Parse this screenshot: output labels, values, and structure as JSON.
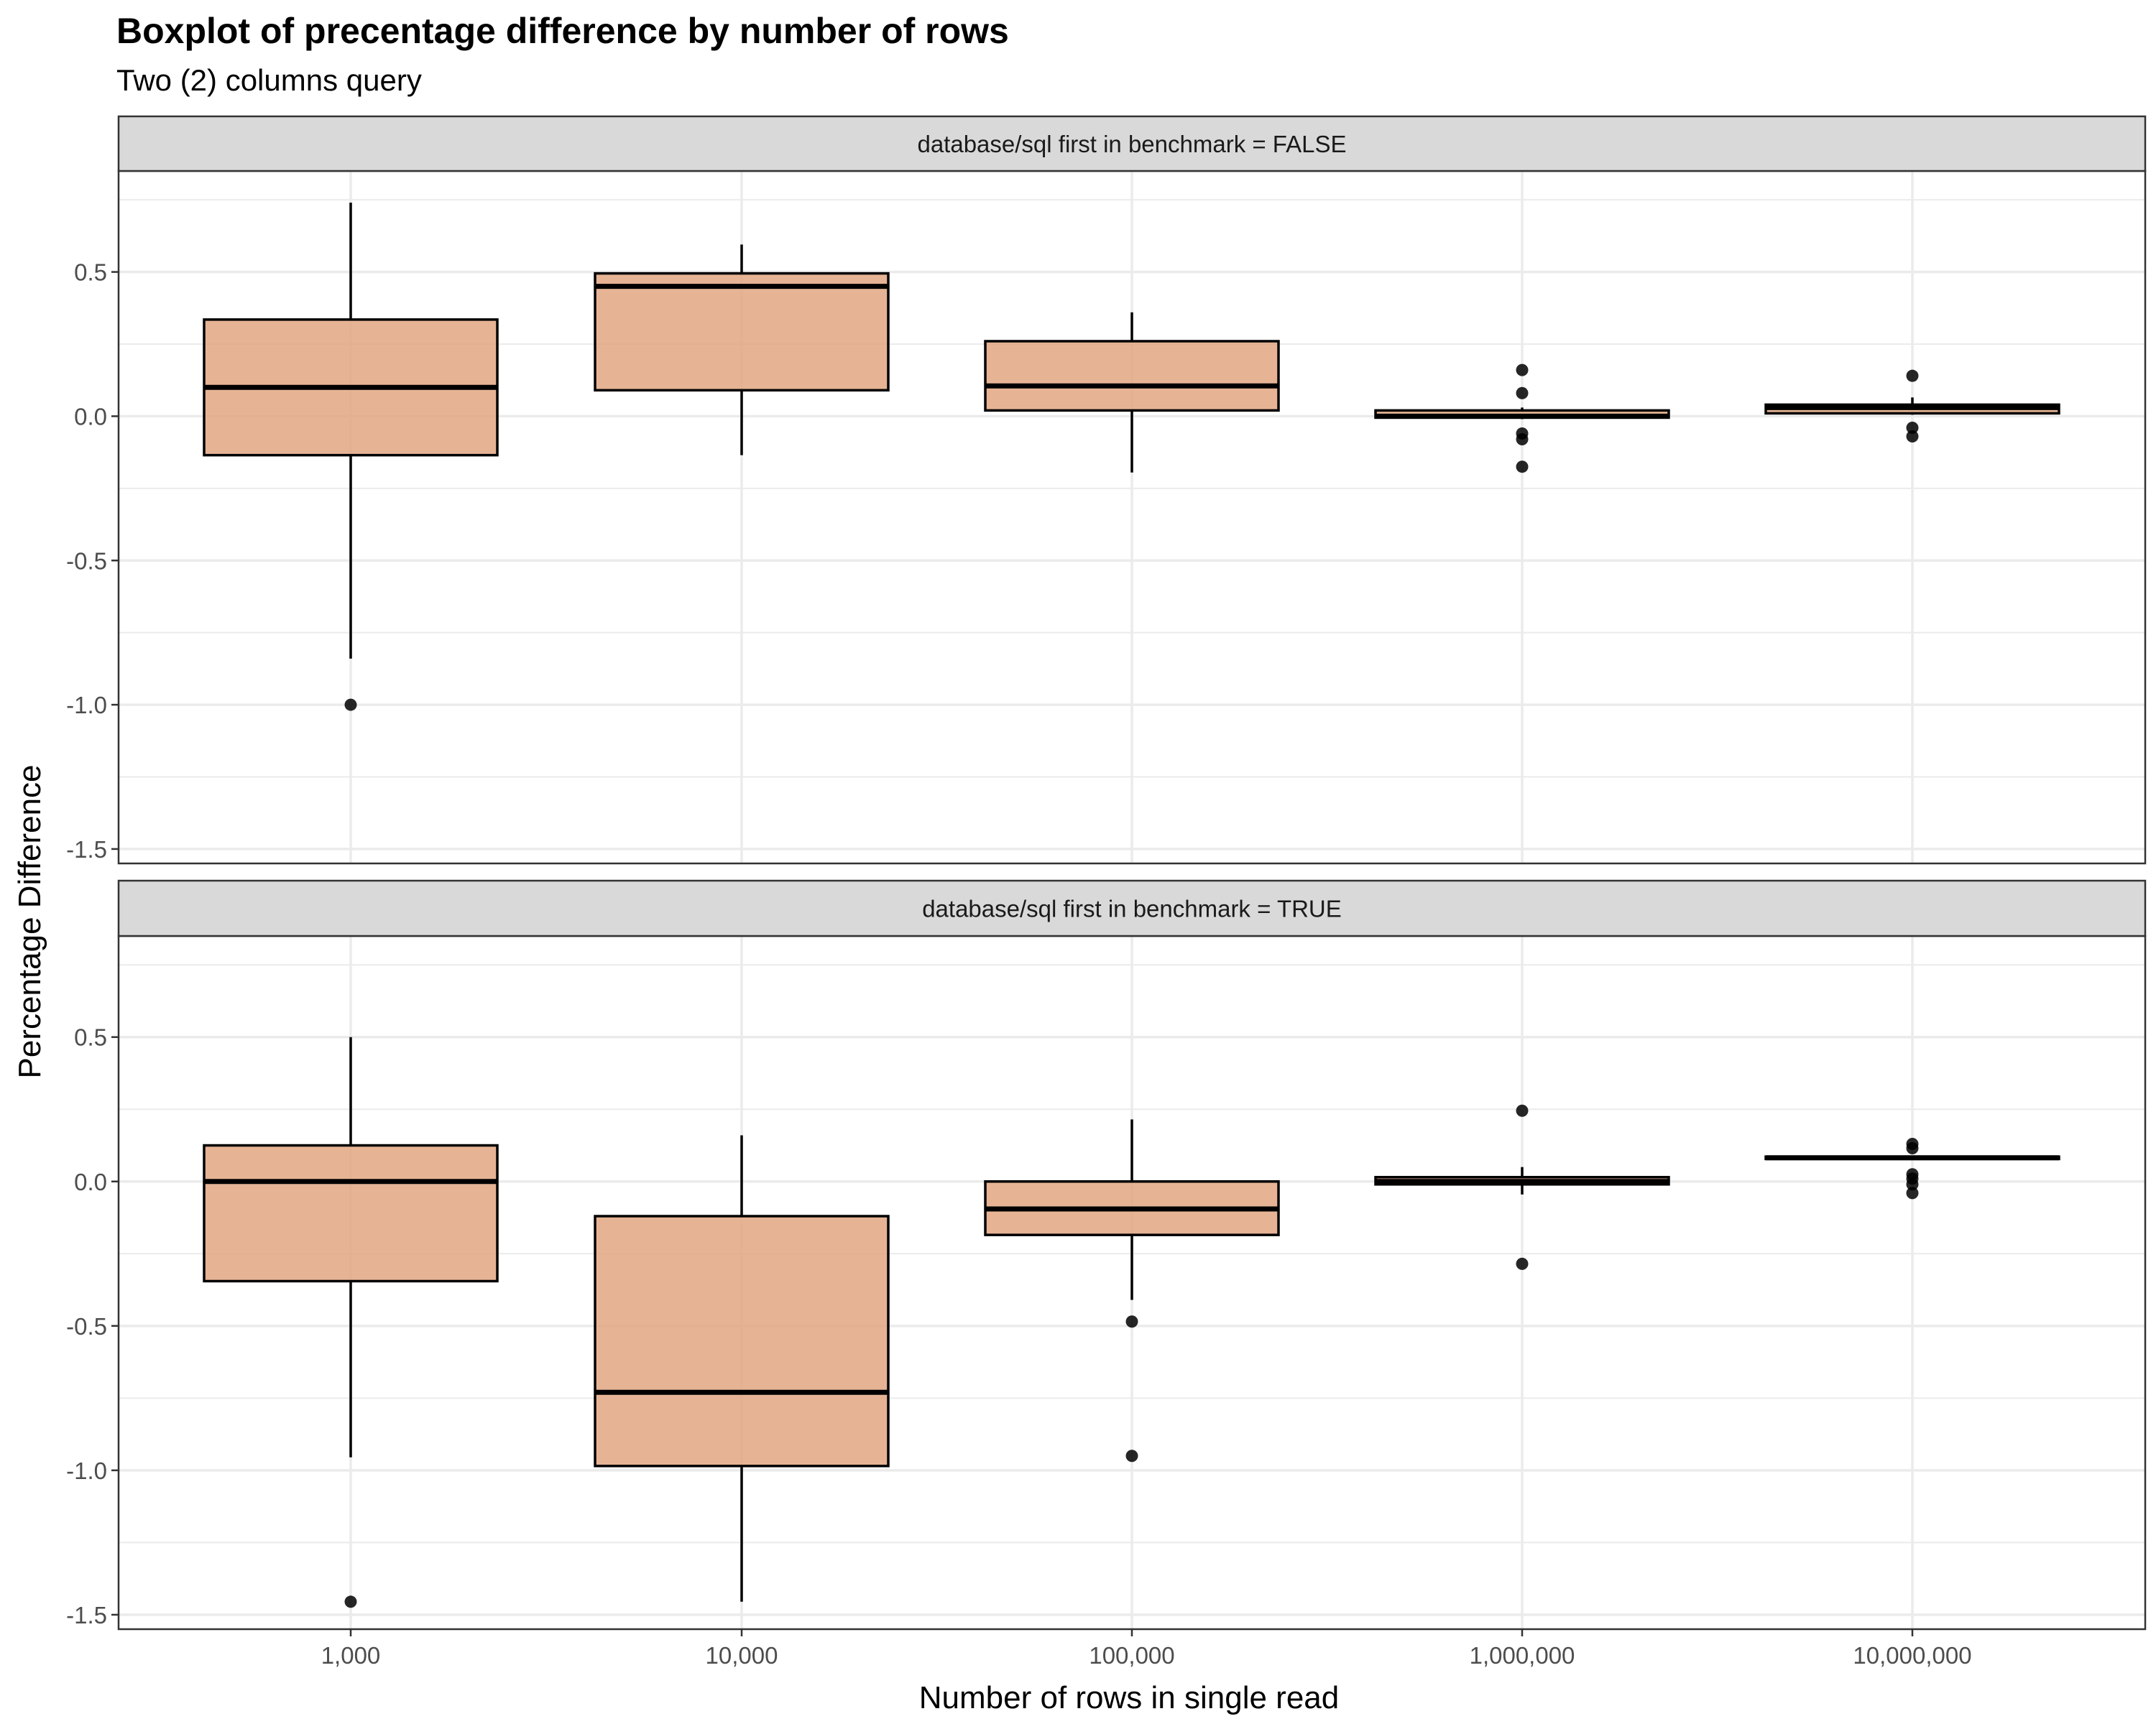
{
  "chart_data": {
    "type": "boxplot",
    "title": "Boxplot of precentage difference by number of rows",
    "subtitle": "Two (2) columns query",
    "xlabel": "Number of rows in single read",
    "ylabel": "Percentage Difference",
    "categories": [
      "1,000",
      "10,000",
      "100,000",
      "1,000,000",
      "10,000,000"
    ],
    "ylim": [
      -1.55,
      0.85
    ],
    "yticks": [
      0.5,
      0.0,
      -0.5,
      -1.0,
      -1.5
    ],
    "ytick_labels": [
      "0.5",
      "0.0",
      "-0.5",
      "-1.0",
      "-1.5"
    ],
    "grid": true,
    "legend": "none",
    "colors": {
      "box_fill": "#e0a47e",
      "box_stroke": "#000000",
      "strip_bg": "#d9d9d9",
      "grid": "#ebebeb"
    },
    "panels": [
      {
        "strip_label": "database/sql first in benchmark = FALSE",
        "boxes": [
          {
            "category": "1,000",
            "lower_whisker": -0.84,
            "q1": -0.135,
            "median": 0.1,
            "q3": 0.335,
            "upper_whisker": 0.74,
            "outliers": [
              -1.0
            ]
          },
          {
            "category": "10,000",
            "lower_whisker": -0.135,
            "q1": 0.09,
            "median": 0.45,
            "q3": 0.495,
            "upper_whisker": 0.595,
            "outliers": []
          },
          {
            "category": "100,000",
            "lower_whisker": -0.195,
            "q1": 0.02,
            "median": 0.105,
            "q3": 0.26,
            "upper_whisker": 0.36,
            "outliers": []
          },
          {
            "category": "1,000,000",
            "lower_whisker": -0.01,
            "q1": -0.005,
            "median": 0.0,
            "q3": 0.02,
            "upper_whisker": 0.03,
            "outliers": [
              0.16,
              0.08,
              -0.06,
              -0.08,
              -0.175
            ]
          },
          {
            "category": "10,000,000",
            "lower_whisker": 0.005,
            "q1": 0.01,
            "median": 0.03,
            "q3": 0.04,
            "upper_whisker": 0.065,
            "outliers": [
              0.14,
              -0.04,
              -0.07
            ]
          }
        ]
      },
      {
        "strip_label": "database/sql first in benchmark = TRUE",
        "boxes": [
          {
            "category": "1,000",
            "lower_whisker": -0.955,
            "q1": -0.345,
            "median": 0.0,
            "q3": 0.125,
            "upper_whisker": 0.5,
            "outliers": [
              -1.455
            ]
          },
          {
            "category": "10,000",
            "lower_whisker": -1.455,
            "q1": -0.985,
            "median": -0.73,
            "q3": -0.12,
            "upper_whisker": 0.16,
            "outliers": []
          },
          {
            "category": "100,000",
            "lower_whisker": -0.41,
            "q1": -0.185,
            "median": -0.095,
            "q3": 0.0,
            "upper_whisker": 0.215,
            "outliers": [
              -0.485,
              -0.95
            ]
          },
          {
            "category": "1,000,000",
            "lower_whisker": -0.045,
            "q1": -0.01,
            "median": 0.0,
            "q3": 0.015,
            "upper_whisker": 0.05,
            "outliers": [
              0.245,
              -0.285
            ]
          },
          {
            "category": "10,000,000",
            "lower_whisker": 0.075,
            "q1": 0.078,
            "median": 0.082,
            "q3": 0.086,
            "upper_whisker": 0.09,
            "outliers": [
              0.13,
              0.115,
              0.025,
              0.01,
              -0.01,
              -0.04
            ]
          }
        ]
      }
    ]
  }
}
